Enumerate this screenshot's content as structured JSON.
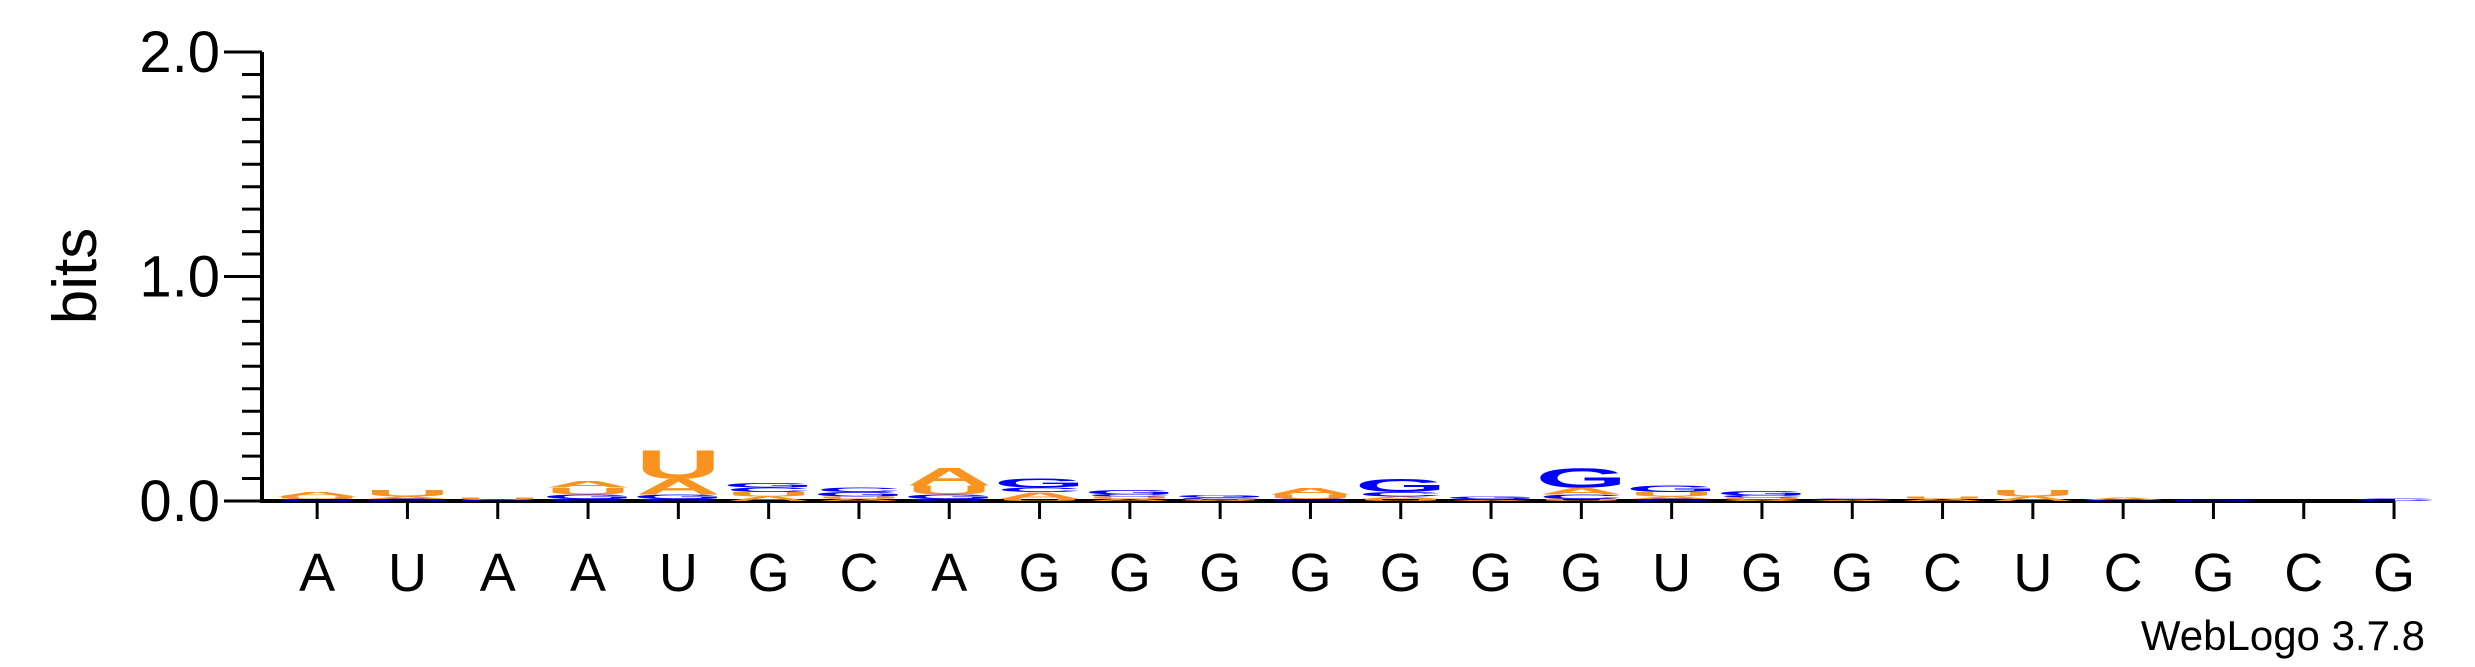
{
  "chart_data": {
    "type": "sequence-logo",
    "ylabel": "bits",
    "ylim": [
      0,
      2.0
    ],
    "yticks": [
      {
        "value": 0.0,
        "label": "0.0"
      },
      {
        "value": 1.0,
        "label": "1.0"
      },
      {
        "value": 2.0,
        "label": "2.0"
      }
    ],
    "y_minor_step": 0.1,
    "x_labels": [
      "A",
      "U",
      "A",
      "A",
      "U",
      "G",
      "C",
      "A",
      "G",
      "G",
      "G",
      "G",
      "G",
      "G",
      "G",
      "U",
      "G",
      "G",
      "C",
      "U",
      "C",
      "G",
      "C",
      "G"
    ],
    "colors": {
      "A": "#f7931e",
      "U": "#f7931e",
      "G": "#0000ff",
      "C": "#0000ff"
    },
    "positions": [
      [
        {
          "letter": "C",
          "bits": 0.01
        },
        {
          "letter": "U",
          "bits": 0.01
        },
        {
          "letter": "A",
          "bits": 0.02
        }
      ],
      [
        {
          "letter": "G",
          "bits": 0.01
        },
        {
          "letter": "A",
          "bits": 0.01
        },
        {
          "letter": "U",
          "bits": 0.03
        }
      ],
      [
        {
          "letter": "C",
          "bits": 0.005
        },
        {
          "letter": "U",
          "bits": 0.01
        }
      ],
      [
        {
          "letter": "C",
          "bits": 0.01
        },
        {
          "letter": "G",
          "bits": 0.02
        },
        {
          "letter": "U",
          "bits": 0.03
        },
        {
          "letter": "A",
          "bits": 0.03
        }
      ],
      [
        {
          "letter": "C",
          "bits": 0.01
        },
        {
          "letter": "G",
          "bits": 0.02
        },
        {
          "letter": "A",
          "bits": 0.07
        },
        {
          "letter": "U",
          "bits": 0.13
        }
      ],
      [
        {
          "letter": "A",
          "bits": 0.02
        },
        {
          "letter": "U",
          "bits": 0.02
        },
        {
          "letter": "C",
          "bits": 0.02
        },
        {
          "letter": "G",
          "bits": 0.02
        }
      ],
      [
        {
          "letter": "A",
          "bits": 0.01
        },
        {
          "letter": "U",
          "bits": 0.01
        },
        {
          "letter": "G",
          "bits": 0.02
        },
        {
          "letter": "C",
          "bits": 0.02
        }
      ],
      [
        {
          "letter": "C",
          "bits": 0.01
        },
        {
          "letter": "G",
          "bits": 0.02
        },
        {
          "letter": "U",
          "bits": 0.04
        },
        {
          "letter": "A",
          "bits": 0.08
        }
      ],
      [
        {
          "letter": "U",
          "bits": 0.01
        },
        {
          "letter": "A",
          "bits": 0.03
        },
        {
          "letter": "C",
          "bits": 0.02
        },
        {
          "letter": "G",
          "bits": 0.04
        }
      ],
      [
        {
          "letter": "A",
          "bits": 0.01
        },
        {
          "letter": "U",
          "bits": 0.01
        },
        {
          "letter": "C",
          "bits": 0.01
        },
        {
          "letter": "G",
          "bits": 0.02
        }
      ],
      [
        {
          "letter": "A",
          "bits": 0.005
        },
        {
          "letter": "U",
          "bits": 0.005
        },
        {
          "letter": "C",
          "bits": 0.005
        },
        {
          "letter": "G",
          "bits": 0.01
        }
      ],
      [
        {
          "letter": "C",
          "bits": 0.01
        },
        {
          "letter": "U",
          "bits": 0.02
        },
        {
          "letter": "A",
          "bits": 0.03
        }
      ],
      [
        {
          "letter": "U",
          "bits": 0.01
        },
        {
          "letter": "A",
          "bits": 0.01
        },
        {
          "letter": "C",
          "bits": 0.02
        },
        {
          "letter": "G",
          "bits": 0.06
        }
      ],
      [
        {
          "letter": "A",
          "bits": 0.005
        },
        {
          "letter": "C",
          "bits": 0.005
        },
        {
          "letter": "G",
          "bits": 0.01
        }
      ],
      [
        {
          "letter": "U",
          "bits": 0.01
        },
        {
          "letter": "C",
          "bits": 0.02
        },
        {
          "letter": "A",
          "bits": 0.03
        },
        {
          "letter": "G",
          "bits": 0.09
        }
      ],
      [
        {
          "letter": "C",
          "bits": 0.01
        },
        {
          "letter": "A",
          "bits": 0.01
        },
        {
          "letter": "U",
          "bits": 0.02
        },
        {
          "letter": "G",
          "bits": 0.03
        }
      ],
      [
        {
          "letter": "A",
          "bits": 0.005
        },
        {
          "letter": "U",
          "bits": 0.01
        },
        {
          "letter": "C",
          "bits": 0.01
        },
        {
          "letter": "G",
          "bits": 0.02
        }
      ],
      [
        {
          "letter": "A",
          "bits": 0.005
        },
        {
          "letter": "G",
          "bits": 0.005
        }
      ],
      [
        {
          "letter": "A",
          "bits": 0.01
        },
        {
          "letter": "U",
          "bits": 0.01
        }
      ],
      [
        {
          "letter": "A",
          "bits": 0.02
        },
        {
          "letter": "U",
          "bits": 0.03
        }
      ],
      [
        {
          "letter": "C",
          "bits": 0.005
        },
        {
          "letter": "A",
          "bits": 0.01
        }
      ],
      [
        {
          "letter": "G",
          "bits": 0.005
        }
      ],
      [],
      [
        {
          "letter": "C",
          "bits": 0.01
        }
      ]
    ]
  },
  "credit": "WebLogo 3.7.8"
}
